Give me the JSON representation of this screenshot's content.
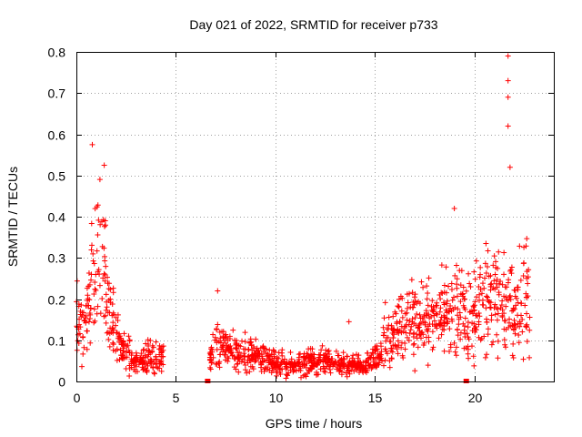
{
  "chart_data": {
    "type": "scatter",
    "title": "Day 021 of 2022, SRMTID for receiver p733",
    "xlabel": "GPS time / hours",
    "ylabel": "SRMTID / TECUs",
    "xlim": [
      0,
      24
    ],
    "ylim": [
      0,
      0.8
    ],
    "grid": true,
    "xticks": [
      0,
      5,
      10,
      15,
      20
    ],
    "xtick_labels": [
      "0",
      "5",
      "10",
      "15",
      "20"
    ],
    "yticks": [
      0,
      0.1,
      0.2,
      0.3,
      0.4,
      0.5,
      0.6,
      0.7,
      0.8
    ],
    "ytick_labels": [
      "0",
      "0.1",
      "0.2",
      "0.3",
      "0.4",
      "0.5",
      "0.6",
      "0.7",
      "0.8"
    ],
    "marker": "plus",
    "color": "#ff0000",
    "coverage_gap_hours": [
      4.6,
      6.6
    ],
    "notable_points": [
      {
        "x": 0.8,
        "y": 0.575
      },
      {
        "x": 1.4,
        "y": 0.525
      },
      {
        "x": 7.1,
        "y": 0.22
      },
      {
        "x": 13.7,
        "y": 0.145
      },
      {
        "x": 19.0,
        "y": 0.42
      },
      {
        "x": 21.7,
        "y": 0.79
      },
      {
        "x": 21.7,
        "y": 0.73
      },
      {
        "x": 21.7,
        "y": 0.69
      },
      {
        "x": 21.7,
        "y": 0.62
      },
      {
        "x": 21.8,
        "y": 0.52
      }
    ],
    "envelope": [
      {
        "x": 0.0,
        "y": 0.14
      },
      {
        "x": 0.3,
        "y": 0.13
      },
      {
        "x": 0.6,
        "y": 0.18
      },
      {
        "x": 0.9,
        "y": 0.27
      },
      {
        "x": 1.2,
        "y": 0.3
      },
      {
        "x": 1.5,
        "y": 0.24
      },
      {
        "x": 1.8,
        "y": 0.14
      },
      {
        "x": 2.2,
        "y": 0.09
      },
      {
        "x": 2.6,
        "y": 0.065
      },
      {
        "x": 3.0,
        "y": 0.045
      },
      {
        "x": 3.5,
        "y": 0.06
      },
      {
        "x": 4.0,
        "y": 0.06
      },
      {
        "x": 4.4,
        "y": 0.055
      },
      {
        "x": 6.7,
        "y": 0.06
      },
      {
        "x": 7.0,
        "y": 0.09
      },
      {
        "x": 7.5,
        "y": 0.075
      },
      {
        "x": 8.5,
        "y": 0.065
      },
      {
        "x": 9.5,
        "y": 0.055
      },
      {
        "x": 10.5,
        "y": 0.04
      },
      {
        "x": 11.5,
        "y": 0.045
      },
      {
        "x": 12.5,
        "y": 0.05
      },
      {
        "x": 13.5,
        "y": 0.04
      },
      {
        "x": 14.5,
        "y": 0.035
      },
      {
        "x": 15.0,
        "y": 0.06
      },
      {
        "x": 15.5,
        "y": 0.1
      },
      {
        "x": 16.0,
        "y": 0.12
      },
      {
        "x": 16.5,
        "y": 0.14
      },
      {
        "x": 17.0,
        "y": 0.15
      },
      {
        "x": 17.5,
        "y": 0.16
      },
      {
        "x": 18.0,
        "y": 0.14
      },
      {
        "x": 18.5,
        "y": 0.15
      },
      {
        "x": 19.0,
        "y": 0.17
      },
      {
        "x": 19.5,
        "y": 0.16
      },
      {
        "x": 20.0,
        "y": 0.17
      },
      {
        "x": 20.5,
        "y": 0.19
      },
      {
        "x": 21.0,
        "y": 0.18
      },
      {
        "x": 21.5,
        "y": 0.2
      },
      {
        "x": 22.0,
        "y": 0.17
      },
      {
        "x": 22.5,
        "y": 0.2
      },
      {
        "x": 22.8,
        "y": 0.22
      }
    ],
    "zero_markers": [
      {
        "x": 6.6,
        "y": 0
      },
      {
        "x": 19.6,
        "y": 0
      }
    ]
  }
}
